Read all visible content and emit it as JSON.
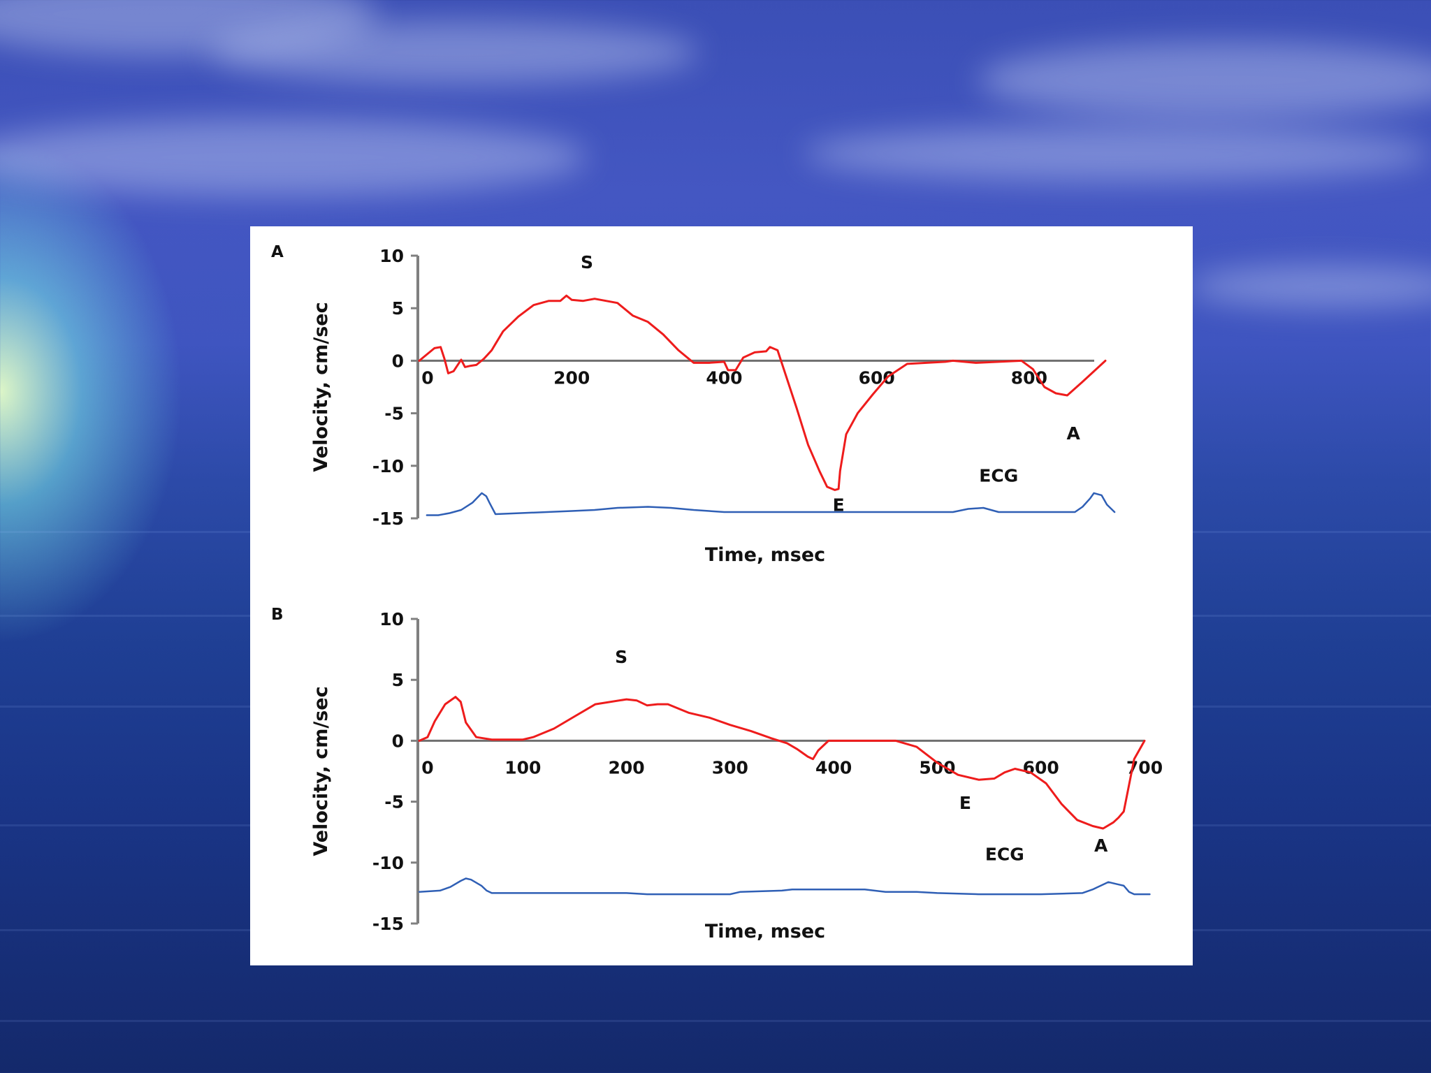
{
  "chart_data": [
    {
      "type": "line",
      "panel_label": "A",
      "xlabel": "Time, msec",
      "ylabel": "Velocity, cm/sec",
      "ylim": [
        -15,
        10
      ],
      "xlim": [
        0,
        900
      ],
      "yticks": [
        10,
        5,
        0,
        -5,
        -10,
        -15
      ],
      "xticks": [
        0,
        200,
        400,
        600,
        800
      ],
      "annotations": [
        {
          "text": "S",
          "x": 220,
          "y": 8.8
        },
        {
          "text": "E",
          "x": 550,
          "y": -14.3
        },
        {
          "text": "A",
          "x": 858,
          "y": -7.5
        },
        {
          "text": "ECG",
          "x": 760,
          "y": -11.5
        }
      ],
      "series": [
        {
          "color": "#ee1c1c",
          "x": [
            0,
            10,
            20,
            28,
            33,
            38,
            45,
            55,
            60,
            66,
            75,
            85,
            95,
            100,
            110,
            130,
            150,
            170,
            185,
            193,
            200,
            215,
            230,
            245,
            260,
            280,
            300,
            320,
            340,
            360,
            380,
            400,
            405,
            415,
            425,
            440,
            455,
            460,
            470,
            480,
            495,
            510,
            525,
            535,
            545,
            550,
            552,
            560,
            575,
            595,
            615,
            640,
            665,
            690,
            700,
            730,
            760,
            790,
            805,
            820,
            835,
            850,
            870,
            900
          ],
          "y": [
            0.0,
            0.6,
            1.2,
            1.3,
            0.2,
            -1.2,
            -1.0,
            0.1,
            -0.6,
            -0.5,
            -0.4,
            0.2,
            1.0,
            1.6,
            2.8,
            4.2,
            5.3,
            5.7,
            5.7,
            6.2,
            5.8,
            5.7,
            5.9,
            5.7,
            5.5,
            4.3,
            3.7,
            2.5,
            1.0,
            -0.2,
            -0.2,
            -0.1,
            -0.9,
            -0.9,
            0.3,
            0.8,
            0.9,
            1.3,
            1.0,
            -1.2,
            -4.5,
            -8.0,
            -10.5,
            -12.0,
            -12.3,
            -12.2,
            -10.5,
            -7.0,
            -5.0,
            -3.2,
            -1.5,
            -0.3,
            -0.2,
            -0.1,
            0.0,
            -0.2,
            -0.1,
            0.0,
            -0.8,
            -2.5,
            -3.1,
            -3.3,
            -2.0,
            0.0
          ]
        },
        {
          "color": "#2f5fb5",
          "x": [
            10,
            25,
            40,
            55,
            70,
            78,
            82,
            88,
            92,
            100,
            200,
            230,
            260,
            300,
            330,
            360,
            400,
            500,
            700,
            720,
            740,
            760,
            790,
            860,
            870,
            880,
            885,
            895,
            902,
            912
          ],
          "y": [
            -14.7,
            -14.7,
            -14.5,
            -14.2,
            -13.5,
            -12.9,
            -12.6,
            -12.9,
            -13.5,
            -14.6,
            -14.3,
            -14.2,
            -14.0,
            -13.9,
            -14.0,
            -14.2,
            -14.4,
            -14.4,
            -14.4,
            -14.1,
            -14.0,
            -14.4,
            -14.4,
            -14.4,
            -13.9,
            -13.1,
            -12.6,
            -12.8,
            -13.7,
            -14.4
          ]
        }
      ]
    },
    {
      "type": "line",
      "panel_label": "B",
      "xlabel": "Time, msec",
      "ylabel": "Velocity, cm/sec",
      "ylim": [
        -15,
        10
      ],
      "xlim": [
        0,
        700
      ],
      "yticks": [
        10,
        5,
        0,
        -5,
        -10,
        -15
      ],
      "xticks": [
        0,
        100,
        200,
        300,
        400,
        500,
        600,
        700
      ],
      "annotations": [
        {
          "text": "S",
          "x": 195,
          "y": 6.4
        },
        {
          "text": "E",
          "x": 527,
          "y": -5.6
        },
        {
          "text": "A",
          "x": 658,
          "y": -9.1
        },
        {
          "text": "ECG",
          "x": 565,
          "y": -9.8
        }
      ],
      "series": [
        {
          "color": "#ee1c1c",
          "x": [
            0,
            8,
            15,
            25,
            35,
            40,
            45,
            55,
            70,
            100,
            110,
            130,
            150,
            170,
            200,
            210,
            220,
            230,
            240,
            260,
            280,
            300,
            320,
            340,
            355,
            365,
            375,
            380,
            385,
            395,
            405,
            420,
            460,
            480,
            500,
            520,
            540,
            555,
            565,
            575,
            590,
            605,
            620,
            635,
            650,
            660,
            670,
            675,
            680,
            690,
            700
          ],
          "y": [
            0.0,
            0.3,
            1.6,
            3.0,
            3.6,
            3.2,
            1.5,
            0.3,
            0.1,
            0.1,
            0.3,
            1.0,
            2.0,
            3.0,
            3.4,
            3.3,
            2.9,
            3.0,
            3.0,
            2.3,
            1.9,
            1.3,
            0.8,
            0.2,
            -0.2,
            -0.7,
            -1.3,
            -1.5,
            -0.8,
            0.0,
            0.0,
            0.0,
            0.0,
            -0.5,
            -1.8,
            -2.8,
            -3.2,
            -3.1,
            -2.6,
            -2.3,
            -2.6,
            -3.5,
            -5.2,
            -6.5,
            -7.0,
            -7.2,
            -6.7,
            -6.3,
            -5.8,
            -1.5,
            0.0
          ]
        },
        {
          "color": "#2f5fb5",
          "x": [
            0,
            20,
            30,
            40,
            45,
            50,
            60,
            65,
            70,
            100,
            200,
            220,
            300,
            310,
            350,
            360,
            400,
            430,
            450,
            480,
            500,
            540,
            600,
            640,
            650,
            660,
            665,
            675,
            680,
            685,
            690,
            705
          ],
          "y": [
            -12.4,
            -12.3,
            -12.0,
            -11.5,
            -11.3,
            -11.4,
            -11.9,
            -12.3,
            -12.5,
            -12.5,
            -12.5,
            -12.6,
            -12.6,
            -12.4,
            -12.3,
            -12.2,
            -12.2,
            -12.2,
            -12.4,
            -12.4,
            -12.5,
            -12.6,
            -12.6,
            -12.5,
            -12.2,
            -11.8,
            -11.6,
            -11.8,
            -11.9,
            -12.4,
            -12.6,
            -12.6
          ]
        }
      ]
    }
  ]
}
